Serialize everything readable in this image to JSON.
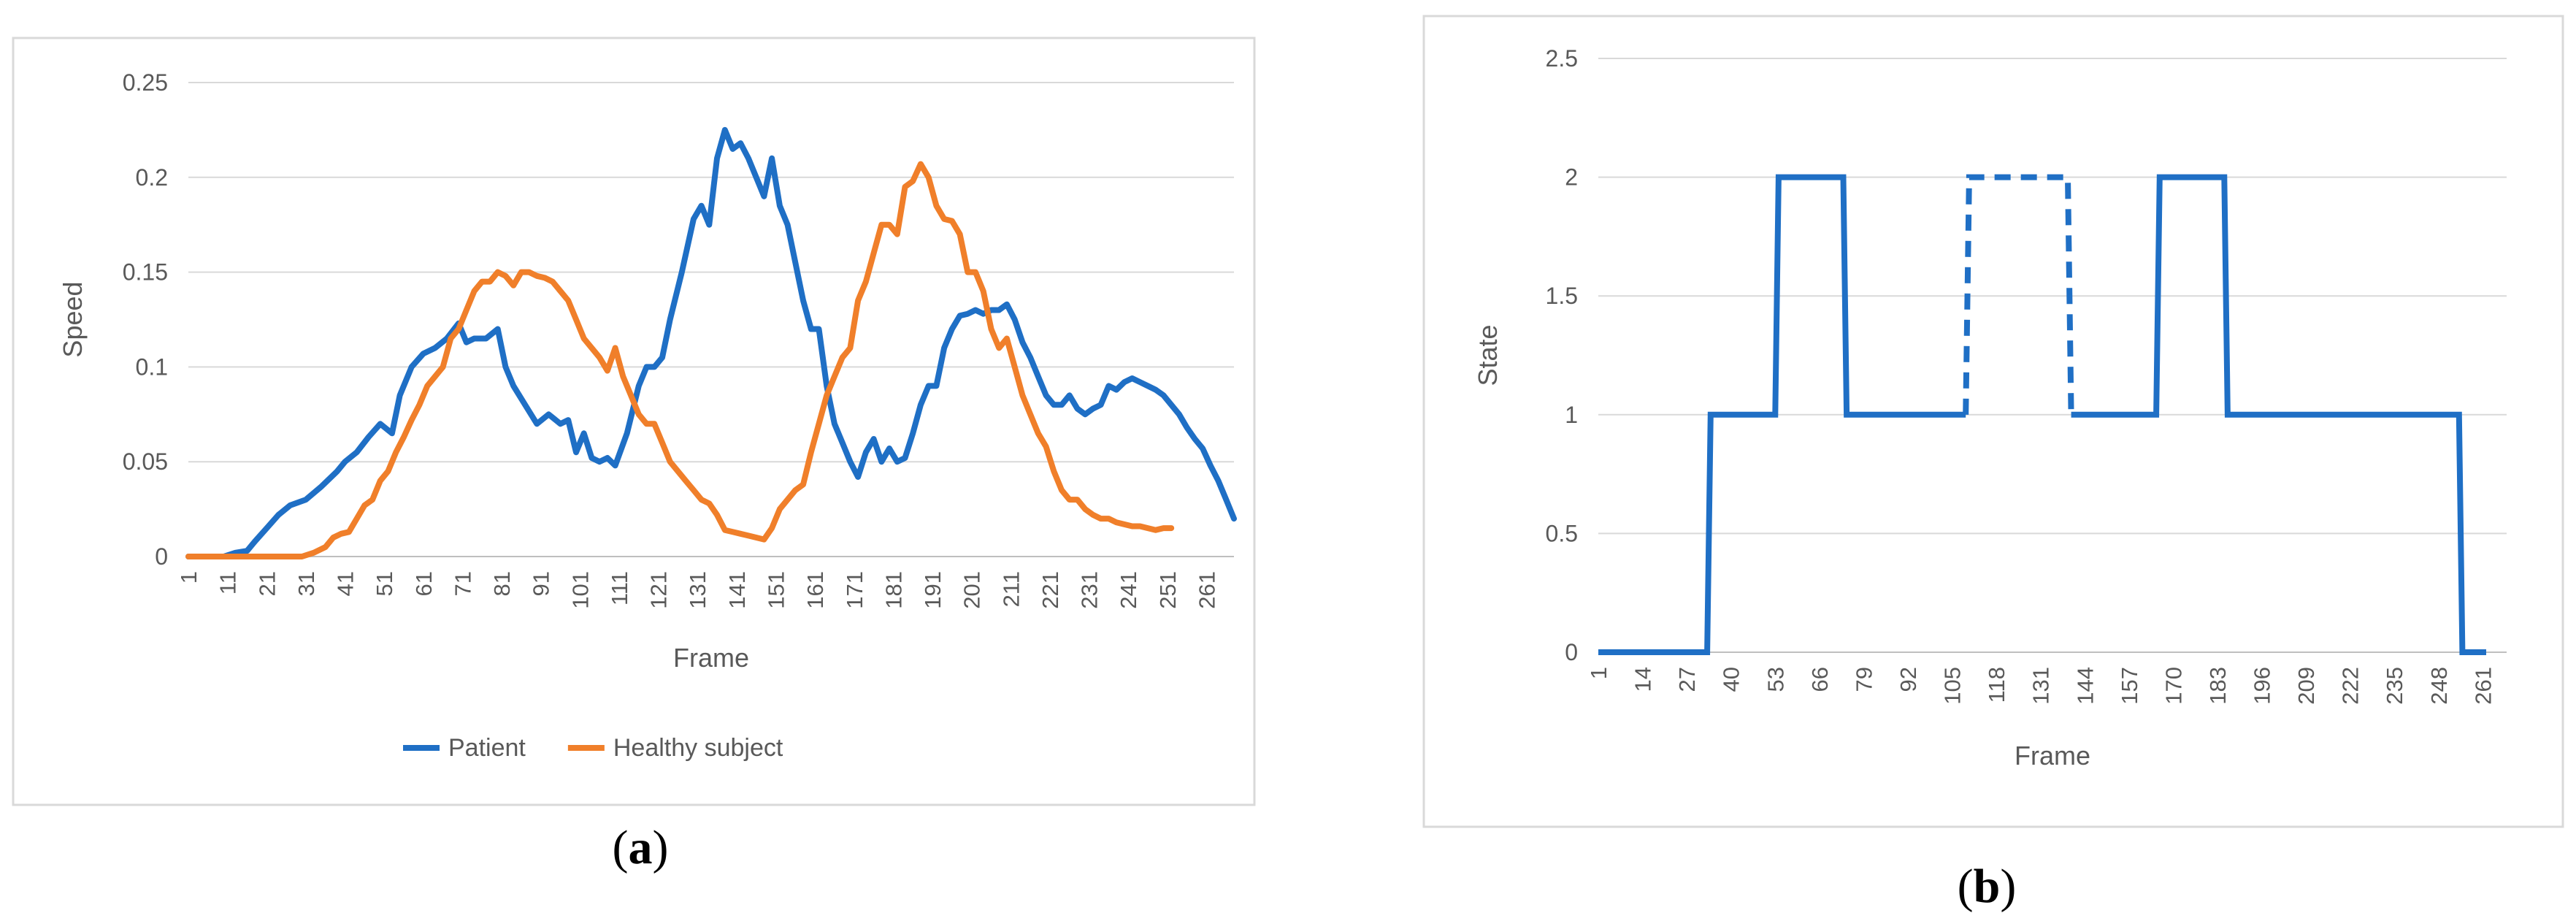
{
  "panels": {
    "a": {
      "label_open": "(",
      "label_letter": "a",
      "label_close": ")"
    },
    "b": {
      "label_open": "(",
      "label_letter": "b",
      "label_close": ")"
    }
  },
  "colors": {
    "patient": "#1F6FC5",
    "healthy": "#F07F2A",
    "grid": "#D9D9D9",
    "axis": "#BFBFBF",
    "tick_text": "#595959",
    "frame": "#D9D9D9"
  },
  "chart_data": [
    {
      "id": "a",
      "type": "line",
      "title": "",
      "xlabel": "Frame",
      "ylabel": "Speed",
      "xlim": [
        1,
        268
      ],
      "ylim": [
        0,
        0.25
      ],
      "yticks": [
        0,
        0.05,
        0.1,
        0.15,
        0.2,
        0.25
      ],
      "ytick_labels": [
        "0",
        "0.05",
        "0.1",
        "0.15",
        "0.2",
        "0.25"
      ],
      "xticks": [
        1,
        11,
        21,
        31,
        41,
        51,
        61,
        71,
        81,
        91,
        101,
        111,
        121,
        131,
        141,
        151,
        161,
        171,
        181,
        191,
        201,
        211,
        221,
        231,
        241,
        251,
        261
      ],
      "grid": true,
      "legend": "bottom",
      "series": [
        {
          "name": "Patient",
          "color": "#1F6FC5",
          "x": [
            1,
            10,
            13,
            16,
            18,
            21,
            24,
            27,
            31,
            35,
            39,
            41,
            44,
            47,
            50,
            53,
            55,
            58,
            61,
            64,
            67,
            70,
            72,
            74,
            77,
            80,
            82,
            84,
            87,
            90,
            93,
            96,
            98,
            100,
            102,
            104,
            106,
            108,
            110,
            113,
            116,
            118,
            120,
            122,
            124,
            127,
            130,
            132,
            134,
            136,
            138,
            140,
            142,
            144,
            146,
            148,
            150,
            152,
            154,
            156,
            158,
            160,
            162,
            164,
            166,
            168,
            170,
            172,
            174,
            176,
            178,
            180,
            182,
            184,
            186,
            188,
            190,
            192,
            194,
            196,
            198,
            200,
            202,
            204,
            206,
            208,
            210,
            212,
            214,
            216,
            218,
            220,
            222,
            224,
            226,
            228,
            230,
            232,
            234,
            236,
            238,
            240,
            242,
            244,
            246,
            248,
            250,
            252,
            254,
            256,
            258,
            260,
            262,
            264,
            266,
            268
          ],
          "y": [
            0,
            0,
            0.002,
            0.003,
            0.008,
            0.015,
            0.022,
            0.027,
            0.03,
            0.037,
            0.045,
            0.05,
            0.055,
            0.063,
            0.07,
            0.065,
            0.085,
            0.1,
            0.107,
            0.11,
            0.115,
            0.123,
            0.113,
            0.115,
            0.115,
            0.12,
            0.1,
            0.09,
            0.08,
            0.07,
            0.075,
            0.07,
            0.072,
            0.055,
            0.065,
            0.052,
            0.05,
            0.052,
            0.048,
            0.065,
            0.09,
            0.1,
            0.1,
            0.105,
            0.125,
            0.15,
            0.178,
            0.185,
            0.175,
            0.21,
            0.225,
            0.215,
            0.218,
            0.21,
            0.2,
            0.19,
            0.21,
            0.185,
            0.175,
            0.155,
            0.135,
            0.12,
            0.12,
            0.09,
            0.07,
            0.06,
            0.05,
            0.042,
            0.055,
            0.062,
            0.05,
            0.057,
            0.05,
            0.052,
            0.065,
            0.08,
            0.09,
            0.09,
            0.11,
            0.12,
            0.127,
            0.128,
            0.13,
            0.128,
            0.13,
            0.13,
            0.133,
            0.125,
            0.113,
            0.105,
            0.095,
            0.085,
            0.08,
            0.08,
            0.085,
            0.078,
            0.075,
            0.078,
            0.08,
            0.09,
            0.088,
            0.092,
            0.094,
            0.092,
            0.09,
            0.088,
            0.085,
            0.08,
            0.075,
            0.068,
            0.062,
            0.057,
            0.048,
            0.04,
            0.03,
            0.02
          ]
        },
        {
          "name": "Healthy subject",
          "color": "#F07F2A",
          "x": [
            1,
            10,
            20,
            30,
            33,
            36,
            38,
            40,
            42,
            44,
            46,
            48,
            50,
            52,
            54,
            56,
            58,
            60,
            62,
            64,
            66,
            68,
            70,
            72,
            74,
            76,
            78,
            80,
            82,
            84,
            86,
            88,
            90,
            92,
            94,
            96,
            98,
            100,
            102,
            104,
            106,
            108,
            110,
            112,
            114,
            116,
            118,
            120,
            122,
            124,
            126,
            128,
            130,
            132,
            134,
            136,
            138,
            140,
            142,
            144,
            146,
            148,
            150,
            152,
            154,
            156,
            158,
            160,
            162,
            164,
            166,
            168,
            170,
            172,
            174,
            176,
            178,
            180,
            182,
            184,
            186,
            188,
            190,
            192,
            194,
            196,
            198,
            200,
            202,
            204,
            206,
            208,
            210,
            212,
            214,
            216,
            218,
            220,
            222,
            224,
            226,
            228,
            230,
            232,
            234,
            236,
            238,
            240,
            242,
            244,
            246,
            248,
            250,
            252
          ],
          "y": [
            0,
            0,
            0,
            0,
            0.002,
            0.005,
            0.01,
            0.012,
            0.013,
            0.02,
            0.027,
            0.03,
            0.04,
            0.045,
            0.055,
            0.063,
            0.072,
            0.08,
            0.09,
            0.095,
            0.1,
            0.115,
            0.12,
            0.13,
            0.14,
            0.145,
            0.145,
            0.15,
            0.148,
            0.143,
            0.15,
            0.15,
            0.148,
            0.147,
            0.145,
            0.14,
            0.135,
            0.125,
            0.115,
            0.11,
            0.105,
            0.098,
            0.11,
            0.095,
            0.085,
            0.075,
            0.07,
            0.07,
            0.06,
            0.05,
            0.045,
            0.04,
            0.035,
            0.03,
            0.028,
            0.022,
            0.014,
            0.013,
            0.012,
            0.011,
            0.01,
            0.009,
            0.015,
            0.025,
            0.03,
            0.035,
            0.038,
            0.055,
            0.07,
            0.085,
            0.095,
            0.105,
            0.11,
            0.135,
            0.145,
            0.16,
            0.175,
            0.175,
            0.17,
            0.195,
            0.198,
            0.207,
            0.2,
            0.185,
            0.178,
            0.177,
            0.17,
            0.15,
            0.15,
            0.14,
            0.12,
            0.11,
            0.115,
            0.1,
            0.085,
            0.075,
            0.065,
            0.058,
            0.045,
            0.035,
            0.03,
            0.03,
            0.025,
            0.022,
            0.02,
            0.02,
            0.018,
            0.017,
            0.016,
            0.016,
            0.015,
            0.014,
            0.015,
            0.015
          ]
        }
      ]
    },
    {
      "id": "b",
      "type": "line",
      "title": "",
      "xlabel": "Frame",
      "ylabel": "State",
      "xlim": [
        1,
        268
      ],
      "ylim": [
        0,
        2.5
      ],
      "yticks": [
        0,
        0.5,
        1,
        1.5,
        2,
        2.5
      ],
      "ytick_labels": [
        "0",
        "0.5",
        "1",
        "1.5",
        "2",
        "2.5"
      ],
      "xticks": [
        1,
        14,
        27,
        40,
        53,
        66,
        79,
        92,
        105,
        118,
        131,
        144,
        157,
        170,
        183,
        196,
        209,
        222,
        235,
        248,
        261
      ],
      "grid": true,
      "legend": "none",
      "series": [
        {
          "name": "State",
          "color": "#1F6FC5",
          "segments": [
            {
              "style": "solid",
              "x": [
                1,
                33,
                34,
                53,
                54,
                73,
                74,
                109
              ],
              "y": [
                0,
                0,
                1,
                1,
                2,
                2,
                1,
                1
              ]
            },
            {
              "style": "dashed",
              "x": [
                109,
                110,
                139,
                140
              ],
              "y": [
                1,
                2,
                2,
                1
              ]
            },
            {
              "style": "solid",
              "x": [
                140,
                165,
                166,
                185,
                186,
                254,
                255,
                262
              ],
              "y": [
                1,
                1,
                2,
                2,
                1,
                1,
                0,
                0
              ]
            }
          ]
        }
      ]
    }
  ]
}
